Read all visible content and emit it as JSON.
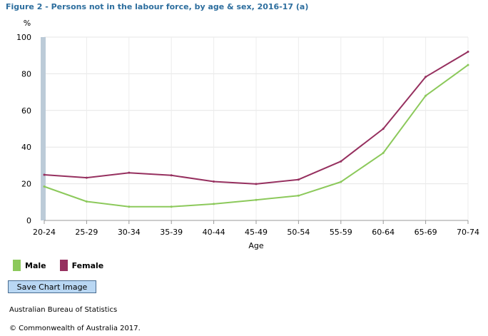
{
  "chart_data": {
    "type": "line",
    "title": "Figure 2 - Persons not in the labour force, by age & sex, 2016-17 (a)",
    "ylabel": "%",
    "xlabel": "Age",
    "categories": [
      "20-24",
      "25-29",
      "30-34",
      "35-39",
      "40-44",
      "45-49",
      "50-54",
      "55-59",
      "60-64",
      "65-69",
      "70-74"
    ],
    "ylim": [
      0,
      100
    ],
    "yticks": [
      0,
      20,
      40,
      60,
      80,
      100
    ],
    "grid": true,
    "legend_position": "bottom-left",
    "series": [
      {
        "name": "Male",
        "color": "#8cc95b",
        "values": [
          18.5,
          10.3,
          7.5,
          7.5,
          9.0,
          11.2,
          13.5,
          21.0,
          36.8,
          68.0,
          84.8
        ]
      },
      {
        "name": "Female",
        "color": "#96305f",
        "values": [
          24.9,
          23.3,
          26.0,
          24.6,
          21.2,
          19.9,
          22.3,
          32.2,
          50.0,
          78.3,
          92.0
        ]
      }
    ]
  },
  "legend": [
    {
      "label": "Male",
      "color": "#8cc95b"
    },
    {
      "label": "Female",
      "color": "#96305f"
    }
  ],
  "save_button_label": "Save Chart Image",
  "source": "Australian Bureau of Statistics",
  "copyright": "© Commonwealth of Australia 2017."
}
